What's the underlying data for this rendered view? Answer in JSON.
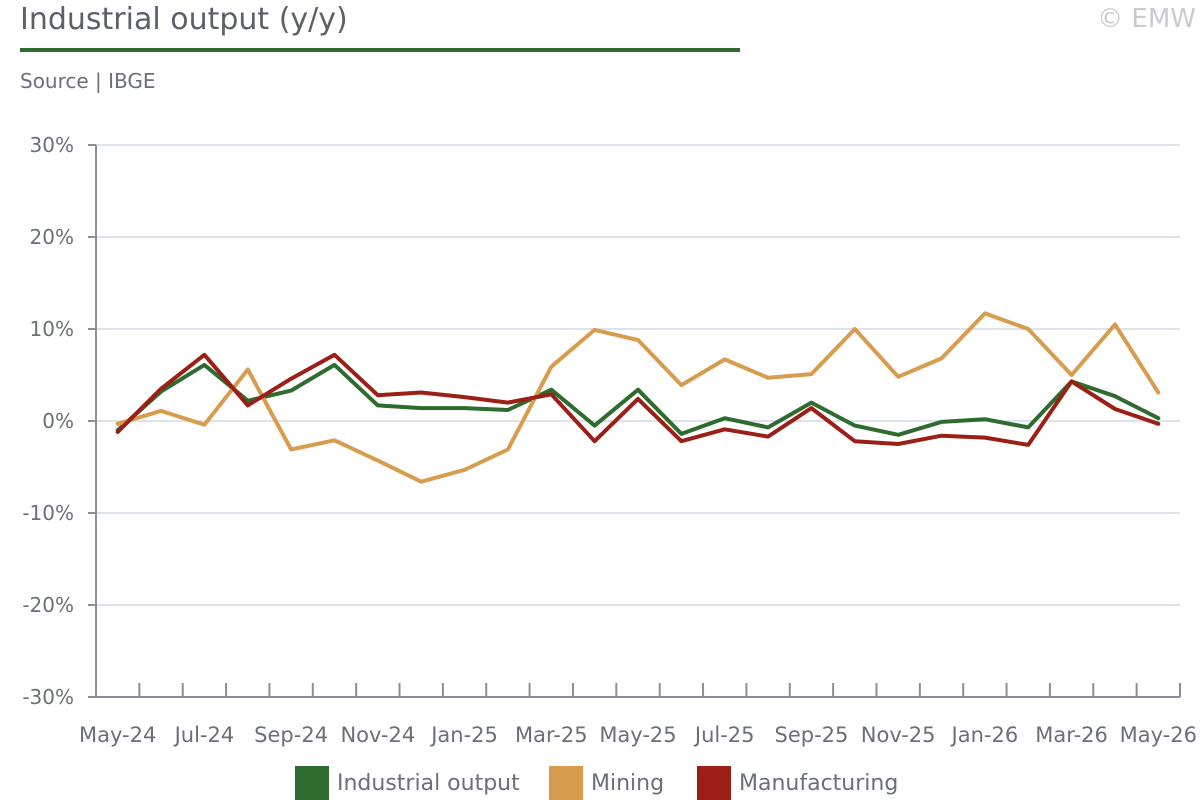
{
  "header": {
    "title": "Industrial output (y/y)",
    "source": "Source | IBGE",
    "copyright": "© EMW"
  },
  "colors": {
    "industrial": "#2e6b2e",
    "mining": "#d89c4f",
    "manufacturing": "#9b1f16",
    "grid": "#dce3ea",
    "axis": "#8a8f99",
    "title_rule": "#2e6b2e"
  },
  "chart_data": {
    "type": "line",
    "x": [
      "May-24",
      "Jun-24",
      "Jul-24",
      "Aug-24",
      "Sep-24",
      "Oct-24",
      "Nov-24",
      "Dec-24",
      "Jan-25",
      "Feb-25",
      "Mar-25",
      "Apr-25",
      "May-25",
      "Jun-25",
      "Jul-25",
      "Aug-25",
      "Sep-25",
      "Oct-25",
      "Nov-25",
      "Dec-25",
      "Jan-26",
      "Feb-26",
      "Mar-26",
      "Apr-26",
      "May-26"
    ],
    "xticklabels": [
      "May-24",
      "Jul-24",
      "Sep-24",
      "Nov-24",
      "Jan-25",
      "Mar-25",
      "May-25",
      "Jul-25",
      "Sep-25",
      "Nov-25",
      "Jan-26",
      "Mar-26",
      "May-26"
    ],
    "yticklabels": [
      "30%",
      "20%",
      "10%",
      "0%",
      "-10%",
      "-20%",
      "-30%"
    ],
    "ylim": [
      -30,
      30
    ],
    "yticks": [
      30,
      20,
      10,
      0,
      -10,
      -20,
      -30
    ],
    "grid": true,
    "legend_position": "bottom",
    "series": [
      {
        "name": "Industrial output",
        "color": "#2e6b2e",
        "values": [
          -1.0,
          3.2,
          6.1,
          2.2,
          3.3,
          6.1,
          1.7,
          1.4,
          1.4,
          1.2,
          3.4,
          -0.5,
          3.4,
          -1.4,
          0.3,
          -0.7,
          2.0,
          -0.5,
          -1.5,
          -0.1,
          0.2,
          -0.7,
          4.3,
          2.7,
          0.3
        ]
      },
      {
        "name": "Mining",
        "color": "#d89c4f",
        "values": [
          -0.3,
          1.1,
          -0.4,
          5.6,
          -3.1,
          -2.1,
          -4.3,
          -6.6,
          -5.3,
          -3.1,
          5.9,
          9.9,
          8.8,
          3.9,
          6.7,
          4.7,
          5.1,
          10.0,
          4.8,
          6.8,
          11.7,
          10.0,
          5.0,
          10.5,
          3.1
        ]
      },
      {
        "name": "Manufacturing",
        "color": "#9b1f16",
        "values": [
          -1.2,
          3.5,
          7.2,
          1.7,
          4.6,
          7.2,
          2.8,
          3.1,
          2.6,
          2.0,
          2.9,
          -2.2,
          2.4,
          -2.2,
          -0.9,
          -1.7,
          1.4,
          -2.2,
          -2.5,
          -1.6,
          -1.8,
          -2.6,
          4.3,
          1.3,
          -0.3
        ]
      }
    ]
  }
}
